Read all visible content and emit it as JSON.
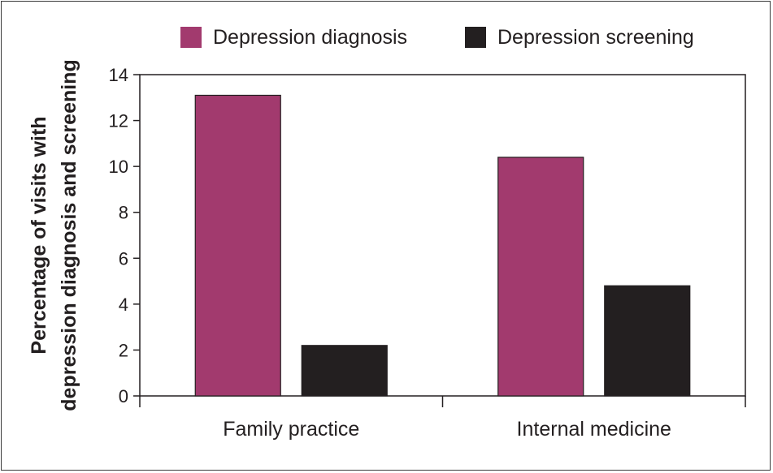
{
  "chart_data": {
    "type": "bar",
    "categories": [
      "Family practice",
      "Internal medicine"
    ],
    "series": [
      {
        "name": "Depression diagnosis",
        "values": [
          13.1,
          10.4
        ],
        "color": "#a23a6e"
      },
      {
        "name": "Depression screening",
        "values": [
          2.2,
          4.8
        ],
        "color": "#231f20"
      }
    ],
    "ylabel_lines": [
      "Percentage of visits with",
      "depression diagnosis and screening"
    ],
    "xlabel": "",
    "ylim": [
      0,
      14
    ],
    "yticks": [
      0,
      2,
      4,
      6,
      8,
      10,
      12,
      14
    ],
    "grid": false,
    "legend_position": "top"
  }
}
